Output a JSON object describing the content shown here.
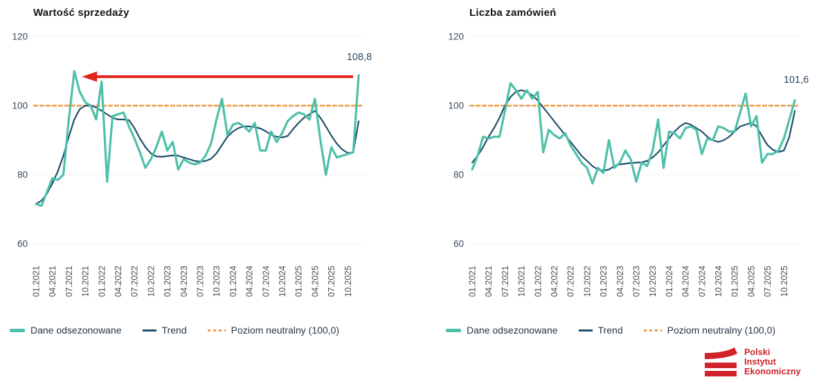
{
  "legend": {
    "series": "Dane odsezonowane",
    "trend": "Trend",
    "neutral": "Poziom neutralny (100,0)"
  },
  "logo": {
    "line1": "Polski",
    "line2": "Instytut",
    "line3": "Ekonomiczny"
  },
  "colors": {
    "seasonal": "#4ec0a9",
    "trend": "#1f4e6c",
    "neutral": "#f09840",
    "arrow": "#e3251c",
    "logo_red": "#d2232a"
  },
  "chart_data": [
    {
      "id": "left",
      "type": "line",
      "title": "Wartość sprzedaży",
      "x_start": "01.2021",
      "x_end": "12.2025",
      "x_labels": [
        "01.2021",
        "04.2021",
        "07.2021",
        "10.2021",
        "01.2022",
        "04.2022",
        "07.2022",
        "10.2022",
        "01.2023",
        "04.2023",
        "07.2023",
        "10.2023",
        "01.2024",
        "04.2024",
        "07.2024",
        "10.2024",
        "01.2025",
        "04.2025",
        "07.2025",
        "10.2025"
      ],
      "y_ticks": [
        120,
        100,
        80,
        60
      ],
      "ylim": [
        58,
        122
      ],
      "neutral_level": 100,
      "annotation": {
        "text": "108,8",
        "arrow": true,
        "arrow_to_month": 8
      },
      "series": [
        {
          "name": "Dane odsezonowane",
          "color": "#4ec0a9",
          "width": 3.2,
          "values": [
            71.5,
            71,
            75,
            79,
            78.5,
            80,
            96,
            110,
            104,
            101,
            100,
            96,
            107,
            78,
            97,
            97.5,
            98,
            94,
            90.5,
            86.5,
            82,
            84.5,
            88,
            92.5,
            87,
            89.5,
            81.5,
            84.5,
            83.5,
            83,
            83.5,
            85.5,
            89,
            96,
            102,
            91.5,
            94.5,
            95,
            94,
            92.5,
            95,
            87,
            87,
            92.5,
            89.5,
            92,
            95.5,
            97,
            98,
            97.5,
            96,
            102,
            90,
            80,
            88,
            85,
            85.5,
            86,
            86.5,
            108.8
          ]
        },
        {
          "name": "Trend",
          "color": "#1f4e6c",
          "width": 2.2,
          "values": [
            71.5,
            72.5,
            74.5,
            77.5,
            81,
            85.5,
            91,
            96,
            99,
            100,
            100,
            99.5,
            98.5,
            97.5,
            96.5,
            96,
            96,
            95.8,
            93.5,
            90.5,
            88,
            86.2,
            85.3,
            85.2,
            85.4,
            85.6,
            85.5,
            85,
            84.5,
            84,
            83.8,
            84,
            84.6,
            86.2,
            88.6,
            91,
            92.5,
            93.5,
            94,
            94,
            93.8,
            93.4,
            92.6,
            91.6,
            91,
            90.8,
            91.2,
            93.2,
            95,
            96.5,
            97.5,
            98.5,
            96.5,
            94,
            91.3,
            89,
            87.3,
            86.3,
            86.5,
            95.5
          ]
        }
      ]
    },
    {
      "id": "right",
      "type": "line",
      "title": "Liczba zamówień",
      "x_start": "01.2021",
      "x_end": "12.2025",
      "x_labels": [
        "01.2021",
        "04.2021",
        "07.2021",
        "10.2021",
        "01.2022",
        "04.2022",
        "07.2022",
        "10.2022",
        "01.2023",
        "04.2023",
        "07.2023",
        "10.2023",
        "01.2024",
        "04.2024",
        "07.2024",
        "10.2024",
        "01.2025",
        "04.2025",
        "07.2025",
        "10.2025"
      ],
      "y_ticks": [
        120,
        100,
        80,
        60
      ],
      "ylim": [
        58,
        122
      ],
      "neutral_level": 100,
      "annotation": {
        "text": "101,6",
        "arrow": false
      },
      "series": [
        {
          "name": "Dane odsezonowane",
          "color": "#4ec0a9",
          "width": 3.2,
          "values": [
            81.5,
            85.5,
            91,
            90.5,
            91,
            91,
            98.5,
            106.5,
            104.5,
            102,
            104.5,
            102,
            104,
            86.5,
            93,
            91.5,
            90.5,
            92,
            88.5,
            86,
            83.5,
            82,
            77.5,
            82,
            80.5,
            90,
            82,
            83.5,
            87,
            84.5,
            78,
            83.5,
            82.5,
            87,
            96,
            82,
            92.5,
            92,
            90.5,
            93.5,
            94,
            93,
            86,
            90.5,
            90,
            94,
            93.5,
            92.5,
            92.5,
            98,
            103.5,
            94,
            97,
            83.5,
            86,
            86,
            87,
            90.5,
            96,
            101.6
          ]
        },
        {
          "name": "Trend",
          "color": "#1f4e6c",
          "width": 2.2,
          "values": [
            83.5,
            85.5,
            88,
            91,
            93.5,
            96.5,
            100,
            102.5,
            104,
            104.5,
            104,
            103,
            101.5,
            99.5,
            97.5,
            95.5,
            93.5,
            91.5,
            89.5,
            87.5,
            85.5,
            84,
            82.5,
            81.5,
            81.2,
            81.5,
            82.5,
            83,
            83.2,
            83.4,
            83.5,
            83.6,
            84,
            85,
            86.5,
            88.5,
            90.5,
            92.5,
            94,
            95,
            94.5,
            93.5,
            92.5,
            91,
            90,
            89.5,
            90,
            91,
            92.5,
            94,
            94.5,
            95,
            94,
            91.2,
            88.6,
            87.2,
            86.6,
            87,
            91,
            98.5
          ]
        }
      ]
    }
  ]
}
